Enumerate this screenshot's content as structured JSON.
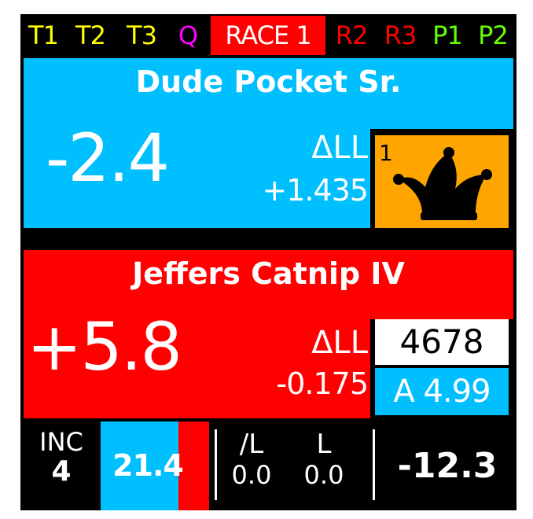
{
  "tabs": [
    {
      "label": "T1",
      "color": "#ffff00"
    },
    {
      "label": "T2",
      "color": "#ffff00"
    },
    {
      "label": "T3",
      "color": "#ffff00"
    },
    {
      "label": "Q",
      "color": "#ff00ff"
    },
    {
      "label": "RACE 1",
      "color": "#ffffff",
      "active": true
    },
    {
      "label": "R2",
      "color": "#ff0000"
    },
    {
      "label": "R3",
      "color": "#ff0000"
    },
    {
      "label": "P1",
      "color": "#66ff00"
    },
    {
      "label": "P2",
      "color": "#66ff00"
    }
  ],
  "ahead": {
    "driver": "Dude Pocket Sr.",
    "gap": "-2.4",
    "delta_label": "ΔLL",
    "delta_value": "+1.435",
    "position": "1",
    "icon": "jester-hat-icon",
    "color": "#00bfff"
  },
  "behind": {
    "driver": "Jeffers Catnip IV",
    "gap": "+5.8",
    "delta_label": "ΔLL",
    "delta_value": "-0.175",
    "car_number": "4678",
    "pit_info": "A 4.99",
    "color": "#ff0000"
  },
  "status": {
    "inc_label": "INC",
    "inc_value": "4",
    "percent_value": "21.4",
    "percent_fill": 0.72,
    "last_lap_a_label": "/L",
    "last_lap_a_value": "0.0",
    "last_lap_b_label": "L",
    "last_lap_b_value": "0.0",
    "total_value": "-12.3"
  }
}
